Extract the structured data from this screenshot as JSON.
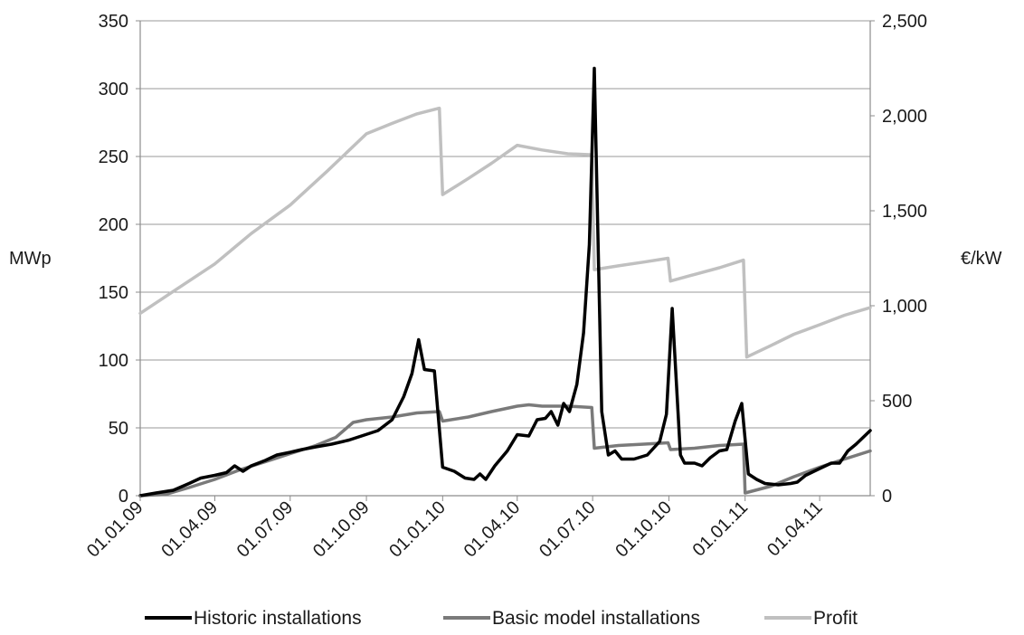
{
  "chart_data": {
    "type": "line",
    "x_type": "date",
    "y_left": {
      "label": "MWp",
      "ticks": [
        0,
        50,
        100,
        150,
        200,
        250,
        300,
        350
      ],
      "tick_labels": [
        "0",
        "50",
        "100",
        "150",
        "200",
        "250",
        "300",
        "350"
      ],
      "range": [
        0,
        350
      ]
    },
    "y_right": {
      "label": "€/kW",
      "ticks": [
        0,
        500,
        1000,
        1500,
        2000,
        2500
      ],
      "tick_labels": [
        "0",
        "500",
        "1,000",
        "1,500",
        "2,000",
        "2,500"
      ],
      "range": [
        0,
        2500
      ]
    },
    "x_axis": {
      "range": [
        "2009-01-01",
        "2011-06-01"
      ],
      "ticks": [
        "2009-01-01",
        "2009-04-01",
        "2009-07-01",
        "2009-10-01",
        "2010-01-01",
        "2010-04-01",
        "2010-07-01",
        "2010-10-01",
        "2011-01-01",
        "2011-04-01"
      ],
      "tick_labels": [
        "01.01.09",
        "01.04.09",
        "01.07.09",
        "01.10.09",
        "01.01.10",
        "01.04.10",
        "01.07.10",
        "01.10.10",
        "01.01.11",
        "01.04.11"
      ]
    },
    "grid": "horizontal",
    "legend_position": "bottom",
    "series": [
      {
        "name": "Historic installations",
        "axis": "left",
        "color": "#000000",
        "points": [
          [
            "2009-01-01",
            0
          ],
          [
            "2009-01-20",
            2
          ],
          [
            "2009-02-10",
            4
          ],
          [
            "2009-03-01",
            9
          ],
          [
            "2009-03-15",
            13
          ],
          [
            "2009-04-01",
            15
          ],
          [
            "2009-04-15",
            17
          ],
          [
            "2009-04-25",
            22
          ],
          [
            "2009-05-05",
            18
          ],
          [
            "2009-05-15",
            22
          ],
          [
            "2009-06-01",
            26
          ],
          [
            "2009-06-15",
            30
          ],
          [
            "2009-07-01",
            32
          ],
          [
            "2009-07-15",
            34
          ],
          [
            "2009-08-01",
            36
          ],
          [
            "2009-08-20",
            38
          ],
          [
            "2009-09-10",
            41
          ],
          [
            "2009-09-25",
            44
          ],
          [
            "2009-10-15",
            48
          ],
          [
            "2009-11-01",
            56
          ],
          [
            "2009-11-15",
            73
          ],
          [
            "2009-11-25",
            90
          ],
          [
            "2009-12-03",
            115
          ],
          [
            "2009-12-10",
            93
          ],
          [
            "2009-12-22",
            92
          ],
          [
            "2010-01-01",
            21
          ],
          [
            "2010-01-15",
            18
          ],
          [
            "2010-01-28",
            13
          ],
          [
            "2010-02-08",
            12
          ],
          [
            "2010-02-15",
            16
          ],
          [
            "2010-02-22",
            12
          ],
          [
            "2010-03-05",
            22
          ],
          [
            "2010-03-20",
            33
          ],
          [
            "2010-04-01",
            45
          ],
          [
            "2010-04-15",
            44
          ],
          [
            "2010-04-25",
            56
          ],
          [
            "2010-05-05",
            57
          ],
          [
            "2010-05-12",
            62
          ],
          [
            "2010-05-20",
            52
          ],
          [
            "2010-05-27",
            68
          ],
          [
            "2010-06-03",
            62
          ],
          [
            "2010-06-12",
            82
          ],
          [
            "2010-06-20",
            120
          ],
          [
            "2010-06-27",
            185
          ],
          [
            "2010-07-03",
            315
          ],
          [
            "2010-07-12",
            62
          ],
          [
            "2010-07-20",
            30
          ],
          [
            "2010-07-28",
            33
          ],
          [
            "2010-08-05",
            27
          ],
          [
            "2010-08-20",
            27
          ],
          [
            "2010-09-05",
            30
          ],
          [
            "2010-09-20",
            40
          ],
          [
            "2010-09-28",
            60
          ],
          [
            "2010-10-05",
            138
          ],
          [
            "2010-10-15",
            30
          ],
          [
            "2010-10-20",
            24
          ],
          [
            "2010-11-01",
            24
          ],
          [
            "2010-11-10",
            22
          ],
          [
            "2010-11-20",
            28
          ],
          [
            "2010-12-01",
            33
          ],
          [
            "2010-12-10",
            34
          ],
          [
            "2010-12-20",
            55
          ],
          [
            "2010-12-28",
            68
          ],
          [
            "2011-01-05",
            16
          ],
          [
            "2011-01-15",
            12
          ],
          [
            "2011-01-25",
            9
          ],
          [
            "2011-02-10",
            8
          ],
          [
            "2011-02-25",
            9
          ],
          [
            "2011-03-05",
            10
          ],
          [
            "2011-03-15",
            15
          ],
          [
            "2011-04-01",
            20
          ],
          [
            "2011-04-15",
            24
          ],
          [
            "2011-04-25",
            24
          ],
          [
            "2011-05-05",
            33
          ],
          [
            "2011-05-15",
            38
          ],
          [
            "2011-06-01",
            48
          ]
        ]
      },
      {
        "name": "Basic model installations",
        "axis": "left",
        "color": "#7a7a7a",
        "points": [
          [
            "2009-01-01",
            0
          ],
          [
            "2009-02-01",
            1
          ],
          [
            "2009-03-01",
            6
          ],
          [
            "2009-04-01",
            12
          ],
          [
            "2009-05-01",
            19
          ],
          [
            "2009-06-01",
            25
          ],
          [
            "2009-07-01",
            31
          ],
          [
            "2009-08-01",
            37
          ],
          [
            "2009-08-25",
            43
          ],
          [
            "2009-09-15",
            54
          ],
          [
            "2009-10-01",
            56
          ],
          [
            "2009-11-01",
            58
          ],
          [
            "2009-12-01",
            61
          ],
          [
            "2009-12-28",
            62
          ],
          [
            "2010-01-01",
            55
          ],
          [
            "2010-02-01",
            58
          ],
          [
            "2010-03-01",
            62
          ],
          [
            "2010-04-01",
            66
          ],
          [
            "2010-04-15",
            67
          ],
          [
            "2010-05-01",
            66
          ],
          [
            "2010-06-01",
            66
          ],
          [
            "2010-06-30",
            65
          ],
          [
            "2010-07-03",
            35
          ],
          [
            "2010-08-01",
            37
          ],
          [
            "2010-09-01",
            38
          ],
          [
            "2010-09-30",
            39
          ],
          [
            "2010-10-03",
            34
          ],
          [
            "2010-11-01",
            35
          ],
          [
            "2010-12-01",
            37
          ],
          [
            "2010-12-30",
            38
          ],
          [
            "2011-01-01",
            2
          ],
          [
            "2011-02-01",
            7
          ],
          [
            "2011-03-01",
            14
          ],
          [
            "2011-04-01",
            21
          ],
          [
            "2011-05-01",
            27
          ],
          [
            "2011-06-01",
            33
          ]
        ]
      },
      {
        "name": "Profit",
        "axis": "right",
        "color": "#c0c0c0",
        "points": [
          [
            "2009-01-01",
            960
          ],
          [
            "2009-02-15",
            1090
          ],
          [
            "2009-04-01",
            1220
          ],
          [
            "2009-05-15",
            1380
          ],
          [
            "2009-07-01",
            1530
          ],
          [
            "2009-08-15",
            1710
          ],
          [
            "2009-10-01",
            1905
          ],
          [
            "2009-11-01",
            1960
          ],
          [
            "2009-12-01",
            2010
          ],
          [
            "2009-12-28",
            2040
          ],
          [
            "2010-01-01",
            1585
          ],
          [
            "2010-02-01",
            1670
          ],
          [
            "2010-03-01",
            1750
          ],
          [
            "2010-04-01",
            1845
          ],
          [
            "2010-05-01",
            1820
          ],
          [
            "2010-06-01",
            1800
          ],
          [
            "2010-06-30",
            1795
          ],
          [
            "2010-07-03",
            1190
          ],
          [
            "2010-08-01",
            1210
          ],
          [
            "2010-09-01",
            1230
          ],
          [
            "2010-09-30",
            1250
          ],
          [
            "2010-10-03",
            1130
          ],
          [
            "2010-11-01",
            1165
          ],
          [
            "2010-12-01",
            1200
          ],
          [
            "2010-12-30",
            1240
          ],
          [
            "2011-01-03",
            730
          ],
          [
            "2011-02-01",
            790
          ],
          [
            "2011-03-01",
            850
          ],
          [
            "2011-04-01",
            900
          ],
          [
            "2011-05-01",
            950
          ],
          [
            "2011-06-01",
            990
          ]
        ]
      }
    ]
  }
}
